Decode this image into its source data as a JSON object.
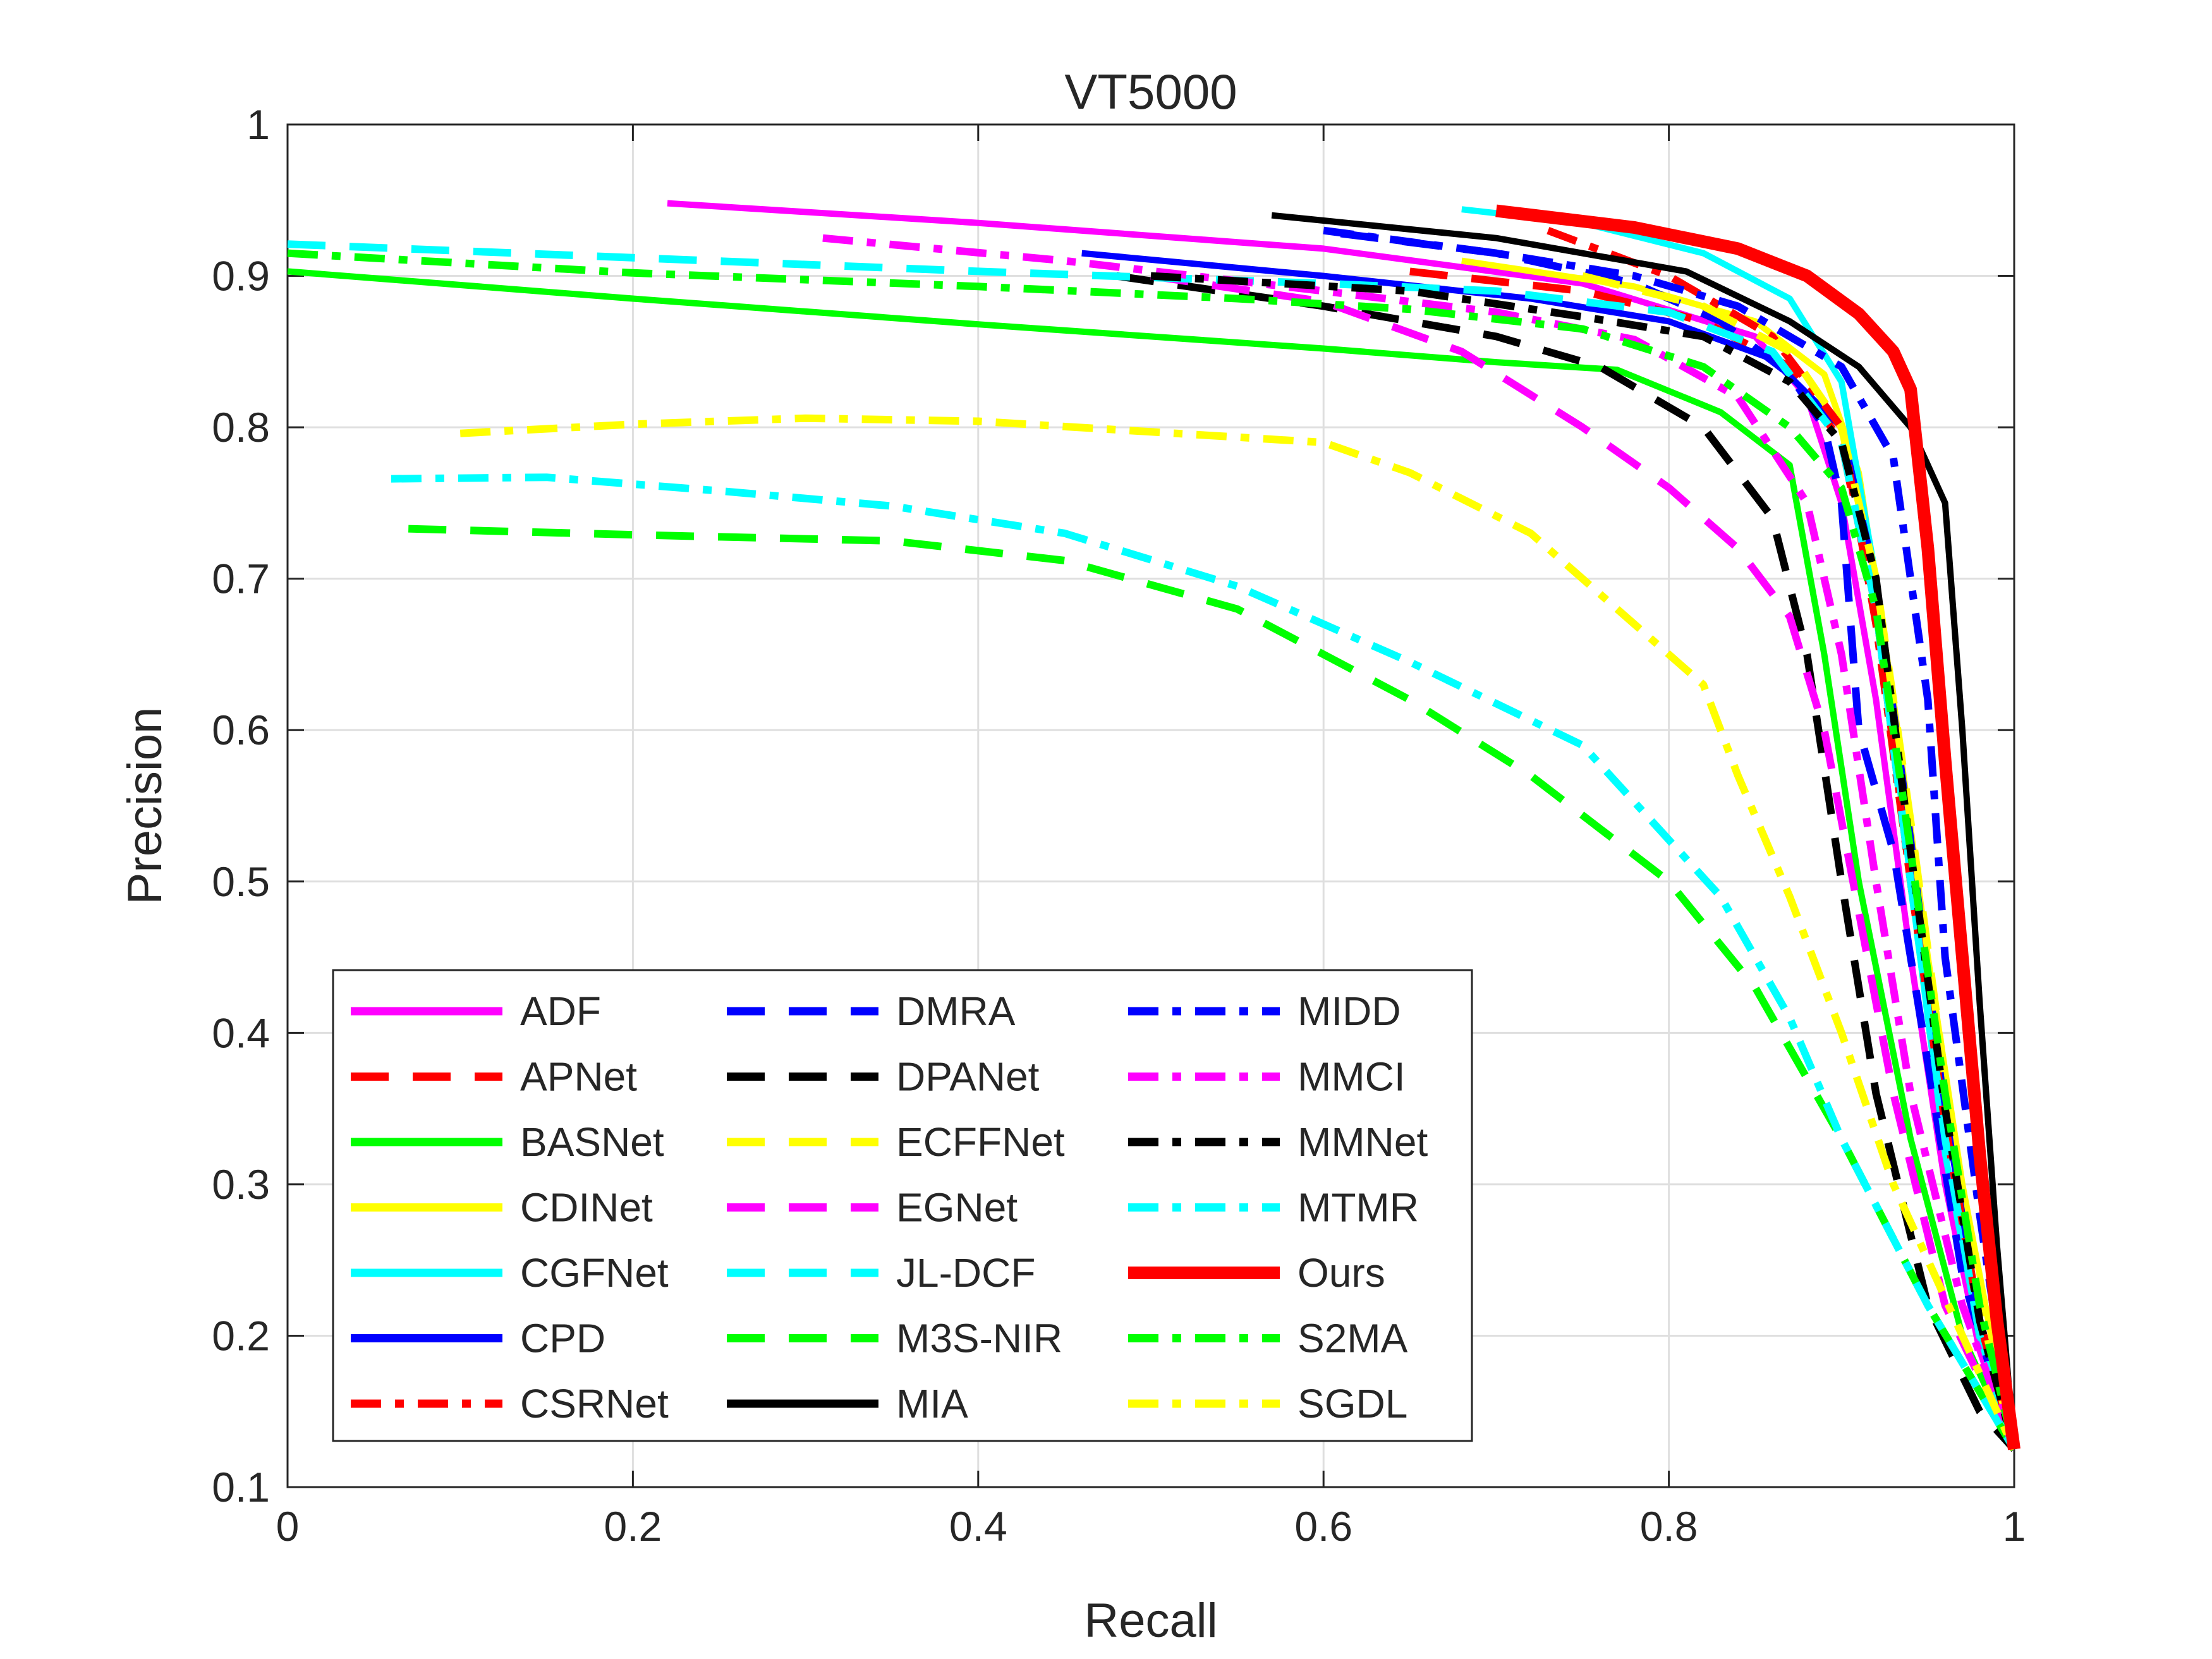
{
  "chart_data": {
    "type": "line",
    "title": "VT5000",
    "xlabel": "Recall",
    "ylabel": "Precision",
    "xlim": [
      0,
      1
    ],
    "ylim": [
      0.1,
      1
    ],
    "grid": true,
    "legend_position": "bottom-left",
    "x_ticks": [
      "0",
      "0.2",
      "0.4",
      "0.6",
      "0.8",
      "1"
    ],
    "y_ticks": [
      "0.1",
      "0.2",
      "0.3",
      "0.4",
      "0.5",
      "0.6",
      "0.7",
      "0.8",
      "0.9",
      "1"
    ],
    "series": [
      {
        "name": "ADF",
        "color": "#ff00ff",
        "style": "solid",
        "points": [
          [
            0.22,
            0.948
          ],
          [
            0.4,
            0.935
          ],
          [
            0.6,
            0.918
          ],
          [
            0.75,
            0.895
          ],
          [
            0.85,
            0.86
          ],
          [
            0.88,
            0.82
          ],
          [
            0.9,
            0.75
          ],
          [
            0.92,
            0.62
          ],
          [
            0.94,
            0.45
          ],
          [
            0.96,
            0.3
          ],
          [
            0.98,
            0.19
          ],
          [
            1.0,
            0.125
          ]
        ]
      },
      {
        "name": "APNet",
        "color": "#ff0000",
        "style": "dashed",
        "points": [
          [
            0.65,
            0.903
          ],
          [
            0.75,
            0.89
          ],
          [
            0.82,
            0.87
          ],
          [
            0.87,
            0.84
          ],
          [
            0.9,
            0.79
          ],
          [
            0.92,
            0.68
          ],
          [
            0.94,
            0.5
          ],
          [
            0.96,
            0.34
          ],
          [
            0.98,
            0.21
          ],
          [
            1.0,
            0.125
          ]
        ]
      },
      {
        "name": "BASNet",
        "color": "#00ff00",
        "style": "solid",
        "points": [
          [
            0.0,
            0.903
          ],
          [
            0.2,
            0.885
          ],
          [
            0.4,
            0.868
          ],
          [
            0.6,
            0.852
          ],
          [
            0.7,
            0.843
          ],
          [
            0.77,
            0.838
          ],
          [
            0.83,
            0.81
          ],
          [
            0.87,
            0.775
          ],
          [
            0.89,
            0.65
          ],
          [
            0.91,
            0.5
          ],
          [
            0.94,
            0.33
          ],
          [
            0.97,
            0.2
          ],
          [
            1.0,
            0.125
          ]
        ]
      },
      {
        "name": "CDINet",
        "color": "#ffff00",
        "style": "solid",
        "points": [
          [
            0.68,
            0.91
          ],
          [
            0.78,
            0.893
          ],
          [
            0.85,
            0.87
          ],
          [
            0.89,
            0.835
          ],
          [
            0.91,
            0.77
          ],
          [
            0.93,
            0.62
          ],
          [
            0.95,
            0.45
          ],
          [
            0.97,
            0.3
          ],
          [
            0.99,
            0.18
          ],
          [
            1.0,
            0.125
          ]
        ]
      },
      {
        "name": "CGFNet",
        "color": "#00ffff",
        "style": "solid",
        "points": [
          [
            0.68,
            0.944
          ],
          [
            0.75,
            0.935
          ],
          [
            0.82,
            0.915
          ],
          [
            0.87,
            0.885
          ],
          [
            0.9,
            0.83
          ],
          [
            0.92,
            0.7
          ],
          [
            0.94,
            0.5
          ],
          [
            0.96,
            0.32
          ],
          [
            0.98,
            0.2
          ],
          [
            1.0,
            0.125
          ]
        ]
      },
      {
        "name": "CPD",
        "color": "#0000ff",
        "style": "solid",
        "points": [
          [
            0.46,
            0.915
          ],
          [
            0.6,
            0.9
          ],
          [
            0.72,
            0.885
          ],
          [
            0.8,
            0.87
          ],
          [
            0.86,
            0.845
          ],
          [
            0.9,
            0.8
          ],
          [
            0.92,
            0.7
          ],
          [
            0.94,
            0.53
          ],
          [
            0.96,
            0.35
          ],
          [
            0.98,
            0.21
          ],
          [
            1.0,
            0.125
          ]
        ]
      },
      {
        "name": "CSRNet",
        "color": "#ff0000",
        "style": "dashdot",
        "points": [
          [
            0.73,
            0.93
          ],
          [
            0.8,
            0.9
          ],
          [
            0.86,
            0.86
          ],
          [
            0.9,
            0.8
          ],
          [
            0.92,
            0.67
          ],
          [
            0.94,
            0.5
          ],
          [
            0.96,
            0.34
          ],
          [
            0.98,
            0.21
          ],
          [
            1.0,
            0.125
          ]
        ]
      },
      {
        "name": "DMRA",
        "color": "#0000ff",
        "style": "dashed",
        "points": [
          [
            0.61,
            0.928
          ],
          [
            0.7,
            0.915
          ],
          [
            0.78,
            0.895
          ],
          [
            0.83,
            0.87
          ],
          [
            0.87,
            0.835
          ],
          [
            0.89,
            0.8
          ],
          [
            0.9,
            0.75
          ],
          [
            0.91,
            0.6
          ],
          [
            0.93,
            0.52
          ],
          [
            0.95,
            0.38
          ],
          [
            0.97,
            0.24
          ],
          [
            1.0,
            0.125
          ]
        ]
      },
      {
        "name": "DPANet",
        "color": "#000000",
        "style": "dashed",
        "points": [
          [
            0.48,
            0.9
          ],
          [
            0.6,
            0.88
          ],
          [
            0.7,
            0.86
          ],
          [
            0.76,
            0.84
          ],
          [
            0.82,
            0.8
          ],
          [
            0.86,
            0.74
          ],
          [
            0.88,
            0.65
          ],
          [
            0.9,
            0.5
          ],
          [
            0.92,
            0.36
          ],
          [
            0.95,
            0.22
          ],
          [
            0.98,
            0.15
          ],
          [
            1.0,
            0.125
          ]
        ]
      },
      {
        "name": "ECFFNet",
        "color": "#ffff00",
        "style": "dashed",
        "points": [
          [
            0.75,
            0.9
          ],
          [
            0.82,
            0.88
          ],
          [
            0.87,
            0.85
          ],
          [
            0.9,
            0.8
          ],
          [
            0.92,
            0.7
          ],
          [
            0.94,
            0.54
          ],
          [
            0.96,
            0.37
          ],
          [
            0.98,
            0.22
          ],
          [
            1.0,
            0.125
          ]
        ]
      },
      {
        "name": "EGNet",
        "color": "#ff00ff",
        "style": "dashed",
        "points": [
          [
            0.5,
            0.9
          ],
          [
            0.6,
            0.883
          ],
          [
            0.68,
            0.85
          ],
          [
            0.75,
            0.8
          ],
          [
            0.8,
            0.76
          ],
          [
            0.84,
            0.72
          ],
          [
            0.87,
            0.675
          ],
          [
            0.89,
            0.6
          ],
          [
            0.91,
            0.48
          ],
          [
            0.93,
            0.36
          ],
          [
            0.96,
            0.22
          ],
          [
            1.0,
            0.125
          ]
        ]
      },
      {
        "name": "JL-DCF",
        "color": "#00ffff",
        "style": "dashed",
        "points": [
          [
            0.0,
            0.921
          ],
          [
            0.2,
            0.912
          ],
          [
            0.4,
            0.903
          ],
          [
            0.6,
            0.895
          ],
          [
            0.7,
            0.89
          ],
          [
            0.8,
            0.876
          ],
          [
            0.86,
            0.85
          ],
          [
            0.9,
            0.79
          ],
          [
            0.92,
            0.68
          ],
          [
            0.94,
            0.5
          ],
          [
            0.96,
            0.33
          ],
          [
            0.98,
            0.2
          ],
          [
            1.0,
            0.125
          ]
        ]
      },
      {
        "name": "M3S-NIR",
        "color": "#00ff00",
        "style": "dashed",
        "points": [
          [
            0.07,
            0.733
          ],
          [
            0.2,
            0.729
          ],
          [
            0.35,
            0.725
          ],
          [
            0.45,
            0.712
          ],
          [
            0.55,
            0.68
          ],
          [
            0.65,
            0.62
          ],
          [
            0.72,
            0.57
          ],
          [
            0.8,
            0.5
          ],
          [
            0.85,
            0.43
          ],
          [
            0.9,
            0.33
          ],
          [
            0.95,
            0.22
          ],
          [
            1.0,
            0.125
          ]
        ]
      },
      {
        "name": "MIA",
        "color": "#000000",
        "style": "solid",
        "points": [
          [
            0.57,
            0.94
          ],
          [
            0.7,
            0.925
          ],
          [
            0.81,
            0.903
          ],
          [
            0.87,
            0.87
          ],
          [
            0.91,
            0.84
          ],
          [
            0.94,
            0.8
          ],
          [
            0.96,
            0.75
          ],
          [
            0.97,
            0.6
          ],
          [
            0.98,
            0.42
          ],
          [
            0.99,
            0.26
          ],
          [
            1.0,
            0.125
          ]
        ]
      },
      {
        "name": "MIDD",
        "color": "#0000ff",
        "style": "dashdot",
        "points": [
          [
            0.6,
            0.93
          ],
          [
            0.7,
            0.915
          ],
          [
            0.78,
            0.9
          ],
          [
            0.84,
            0.88
          ],
          [
            0.9,
            0.84
          ],
          [
            0.93,
            0.78
          ],
          [
            0.95,
            0.62
          ],
          [
            0.96,
            0.45
          ],
          [
            0.98,
            0.28
          ],
          [
            1.0,
            0.125
          ]
        ]
      },
      {
        "name": "MMCI",
        "color": "#ff00ff",
        "style": "dashdot",
        "points": [
          [
            0.31,
            0.925
          ],
          [
            0.45,
            0.91
          ],
          [
            0.6,
            0.89
          ],
          [
            0.7,
            0.876
          ],
          [
            0.78,
            0.858
          ],
          [
            0.84,
            0.82
          ],
          [
            0.88,
            0.75
          ],
          [
            0.9,
            0.65
          ],
          [
            0.92,
            0.5
          ],
          [
            0.94,
            0.36
          ],
          [
            0.97,
            0.22
          ],
          [
            1.0,
            0.125
          ]
        ]
      },
      {
        "name": "MMNet",
        "color": "#000000",
        "style": "dashdot",
        "points": [
          [
            0.5,
            0.9
          ],
          [
            0.65,
            0.89
          ],
          [
            0.75,
            0.873
          ],
          [
            0.82,
            0.86
          ],
          [
            0.87,
            0.83
          ],
          [
            0.9,
            0.79
          ],
          [
            0.92,
            0.7
          ],
          [
            0.94,
            0.52
          ],
          [
            0.96,
            0.35
          ],
          [
            0.98,
            0.21
          ],
          [
            1.0,
            0.125
          ]
        ]
      },
      {
        "name": "MTMR",
        "color": "#00ffff",
        "style": "dashdot",
        "points": [
          [
            0.06,
            0.766
          ],
          [
            0.15,
            0.767
          ],
          [
            0.25,
            0.758
          ],
          [
            0.35,
            0.748
          ],
          [
            0.45,
            0.73
          ],
          [
            0.55,
            0.695
          ],
          [
            0.65,
            0.645
          ],
          [
            0.75,
            0.59
          ],
          [
            0.83,
            0.49
          ],
          [
            0.87,
            0.41
          ],
          [
            0.9,
            0.33
          ],
          [
            0.95,
            0.22
          ],
          [
            1.0,
            0.125
          ]
        ]
      },
      {
        "name": "Ours",
        "color": "#ff0000",
        "style": "solid-bold",
        "points": [
          [
            0.7,
            0.943
          ],
          [
            0.78,
            0.932
          ],
          [
            0.84,
            0.918
          ],
          [
            0.88,
            0.9
          ],
          [
            0.91,
            0.875
          ],
          [
            0.93,
            0.85
          ],
          [
            0.94,
            0.825
          ],
          [
            0.95,
            0.72
          ],
          [
            0.96,
            0.58
          ],
          [
            0.97,
            0.45
          ],
          [
            0.98,
            0.32
          ],
          [
            0.99,
            0.21
          ],
          [
            1.0,
            0.125
          ]
        ]
      },
      {
        "name": "S2MA",
        "color": "#00ff00",
        "style": "dashdot",
        "points": [
          [
            0.0,
            0.915
          ],
          [
            0.2,
            0.902
          ],
          [
            0.4,
            0.893
          ],
          [
            0.55,
            0.885
          ],
          [
            0.65,
            0.878
          ],
          [
            0.75,
            0.865
          ],
          [
            0.82,
            0.84
          ],
          [
            0.87,
            0.8
          ],
          [
            0.9,
            0.76
          ],
          [
            0.92,
            0.68
          ],
          [
            0.94,
            0.52
          ],
          [
            0.96,
            0.36
          ],
          [
            0.98,
            0.22
          ],
          [
            1.0,
            0.125
          ]
        ]
      },
      {
        "name": "SGDL",
        "color": "#ffff00",
        "style": "dashdot",
        "points": [
          [
            0.1,
            0.796
          ],
          [
            0.2,
            0.802
          ],
          [
            0.3,
            0.806
          ],
          [
            0.4,
            0.804
          ],
          [
            0.5,
            0.797
          ],
          [
            0.6,
            0.79
          ],
          [
            0.65,
            0.77
          ],
          [
            0.72,
            0.73
          ],
          [
            0.77,
            0.68
          ],
          [
            0.82,
            0.63
          ],
          [
            0.84,
            0.57
          ],
          [
            0.87,
            0.49
          ],
          [
            0.9,
            0.4
          ],
          [
            0.93,
            0.3
          ],
          [
            0.97,
            0.2
          ],
          [
            1.0,
            0.125
          ]
        ]
      }
    ]
  }
}
